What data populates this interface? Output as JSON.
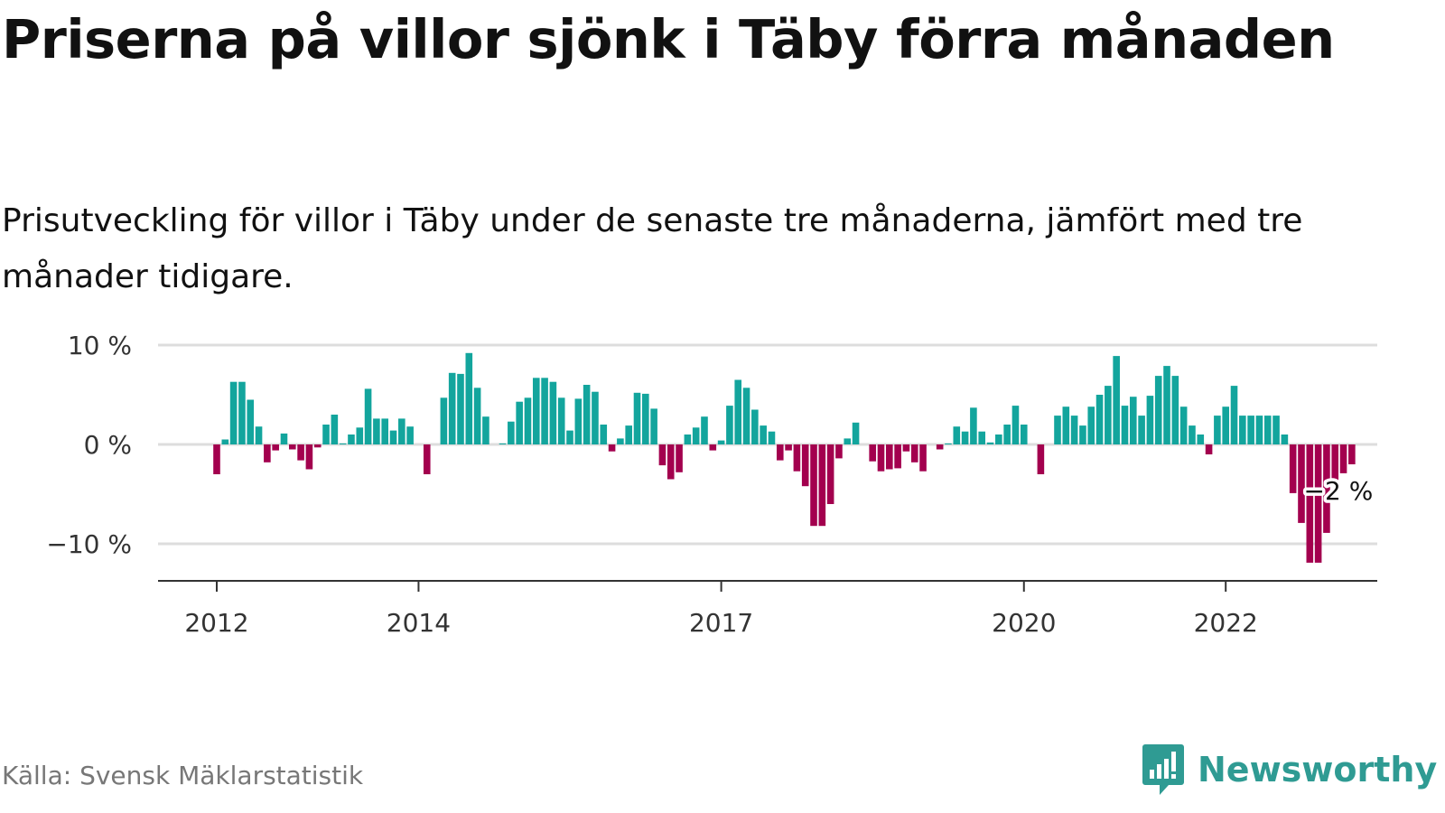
{
  "title": "Priserna på villor sjönk i Täby förra månaden",
  "subtitle": "Prisutveckling för villor i Täby under de senaste tre månaderna, jämfört med tre månader tidigare.",
  "source": "Källa: Svensk Mäklarstatistik",
  "brand": {
    "name": "Newsworthy",
    "icon": "newsworthy-logo-icon",
    "color": "#2f9b93"
  },
  "colors": {
    "positive": "#13a59d",
    "negative": "#a3004e",
    "grid": "#dddddd",
    "axis": "#333333"
  },
  "chart_data": {
    "type": "bar",
    "title": "",
    "xlabel": "",
    "ylabel": "",
    "ylim": [
      -14,
      10
    ],
    "grid": true,
    "y_ticks": [
      {
        "value": 10,
        "label": "10 %"
      },
      {
        "value": 0,
        "label": "0 %"
      },
      {
        "value": -10,
        "label": "−10 %"
      }
    ],
    "x_ticks": [
      {
        "date": "2012-01",
        "label": "2012"
      },
      {
        "date": "2014-01",
        "label": "2014"
      },
      {
        "date": "2017-01",
        "label": "2017"
      },
      {
        "date": "2020-01",
        "label": "2020"
      },
      {
        "date": "2022-01",
        "label": "2022"
      }
    ],
    "annotation": {
      "date": "2023-03",
      "label": "−2 %"
    },
    "series": [
      {
        "start": "2012-01",
        "frequency": "monthly",
        "values": [
          -3,
          0.5,
          6.3,
          6.3,
          4.5,
          1.8,
          -1.8,
          -0.6,
          1.1,
          -0.5,
          -1.6,
          -2.5,
          -0.3,
          2,
          3,
          0.1,
          1,
          1.7,
          5.6,
          2.6,
          2.6,
          1.4,
          2.6,
          1.8,
          0,
          -3,
          0,
          4.7,
          7.2,
          7.1,
          9.2,
          5.7,
          2.8,
          0,
          0.1,
          2.3,
          4.3,
          4.7,
          6.7,
          6.7,
          6.3,
          4.7,
          1.4,
          4.6,
          6,
          5.3,
          2,
          -0.7,
          0.6,
          1.9,
          5.2,
          5.1,
          3.6,
          -2.1,
          -3.5,
          -2.8,
          1,
          1.7,
          2.8,
          -0.6,
          0.4,
          3.9,
          6.5,
          5.7,
          3.5,
          1.9,
          1.3,
          -1.6,
          -0.6,
          -2.7,
          -4.2,
          -8.2,
          -8.2,
          -6,
          -1.4,
          0.6,
          2.2,
          0,
          -1.7,
          -2.7,
          -2.5,
          -2.4,
          -0.7,
          -1.8,
          -2.7,
          0,
          -0.5,
          0.1,
          1.8,
          1.3,
          3.7,
          1.3,
          0.2,
          1,
          2,
          3.9,
          2,
          0,
          -3,
          0,
          2.9,
          3.8,
          2.9,
          1.9,
          3.8,
          5,
          5.9,
          8.9,
          3.9,
          4.8,
          2.9,
          4.9,
          6.9,
          7.9,
          6.9,
          3.8,
          1.9,
          1,
          -1,
          2.9,
          3.8,
          5.9,
          2.9,
          2.9,
          2.9,
          2.9,
          2.9,
          1,
          -4.9,
          -7.9,
          -11.9,
          -11.9,
          -8.9,
          -3.9,
          -2.9,
          -2
        ]
      }
    ]
  }
}
